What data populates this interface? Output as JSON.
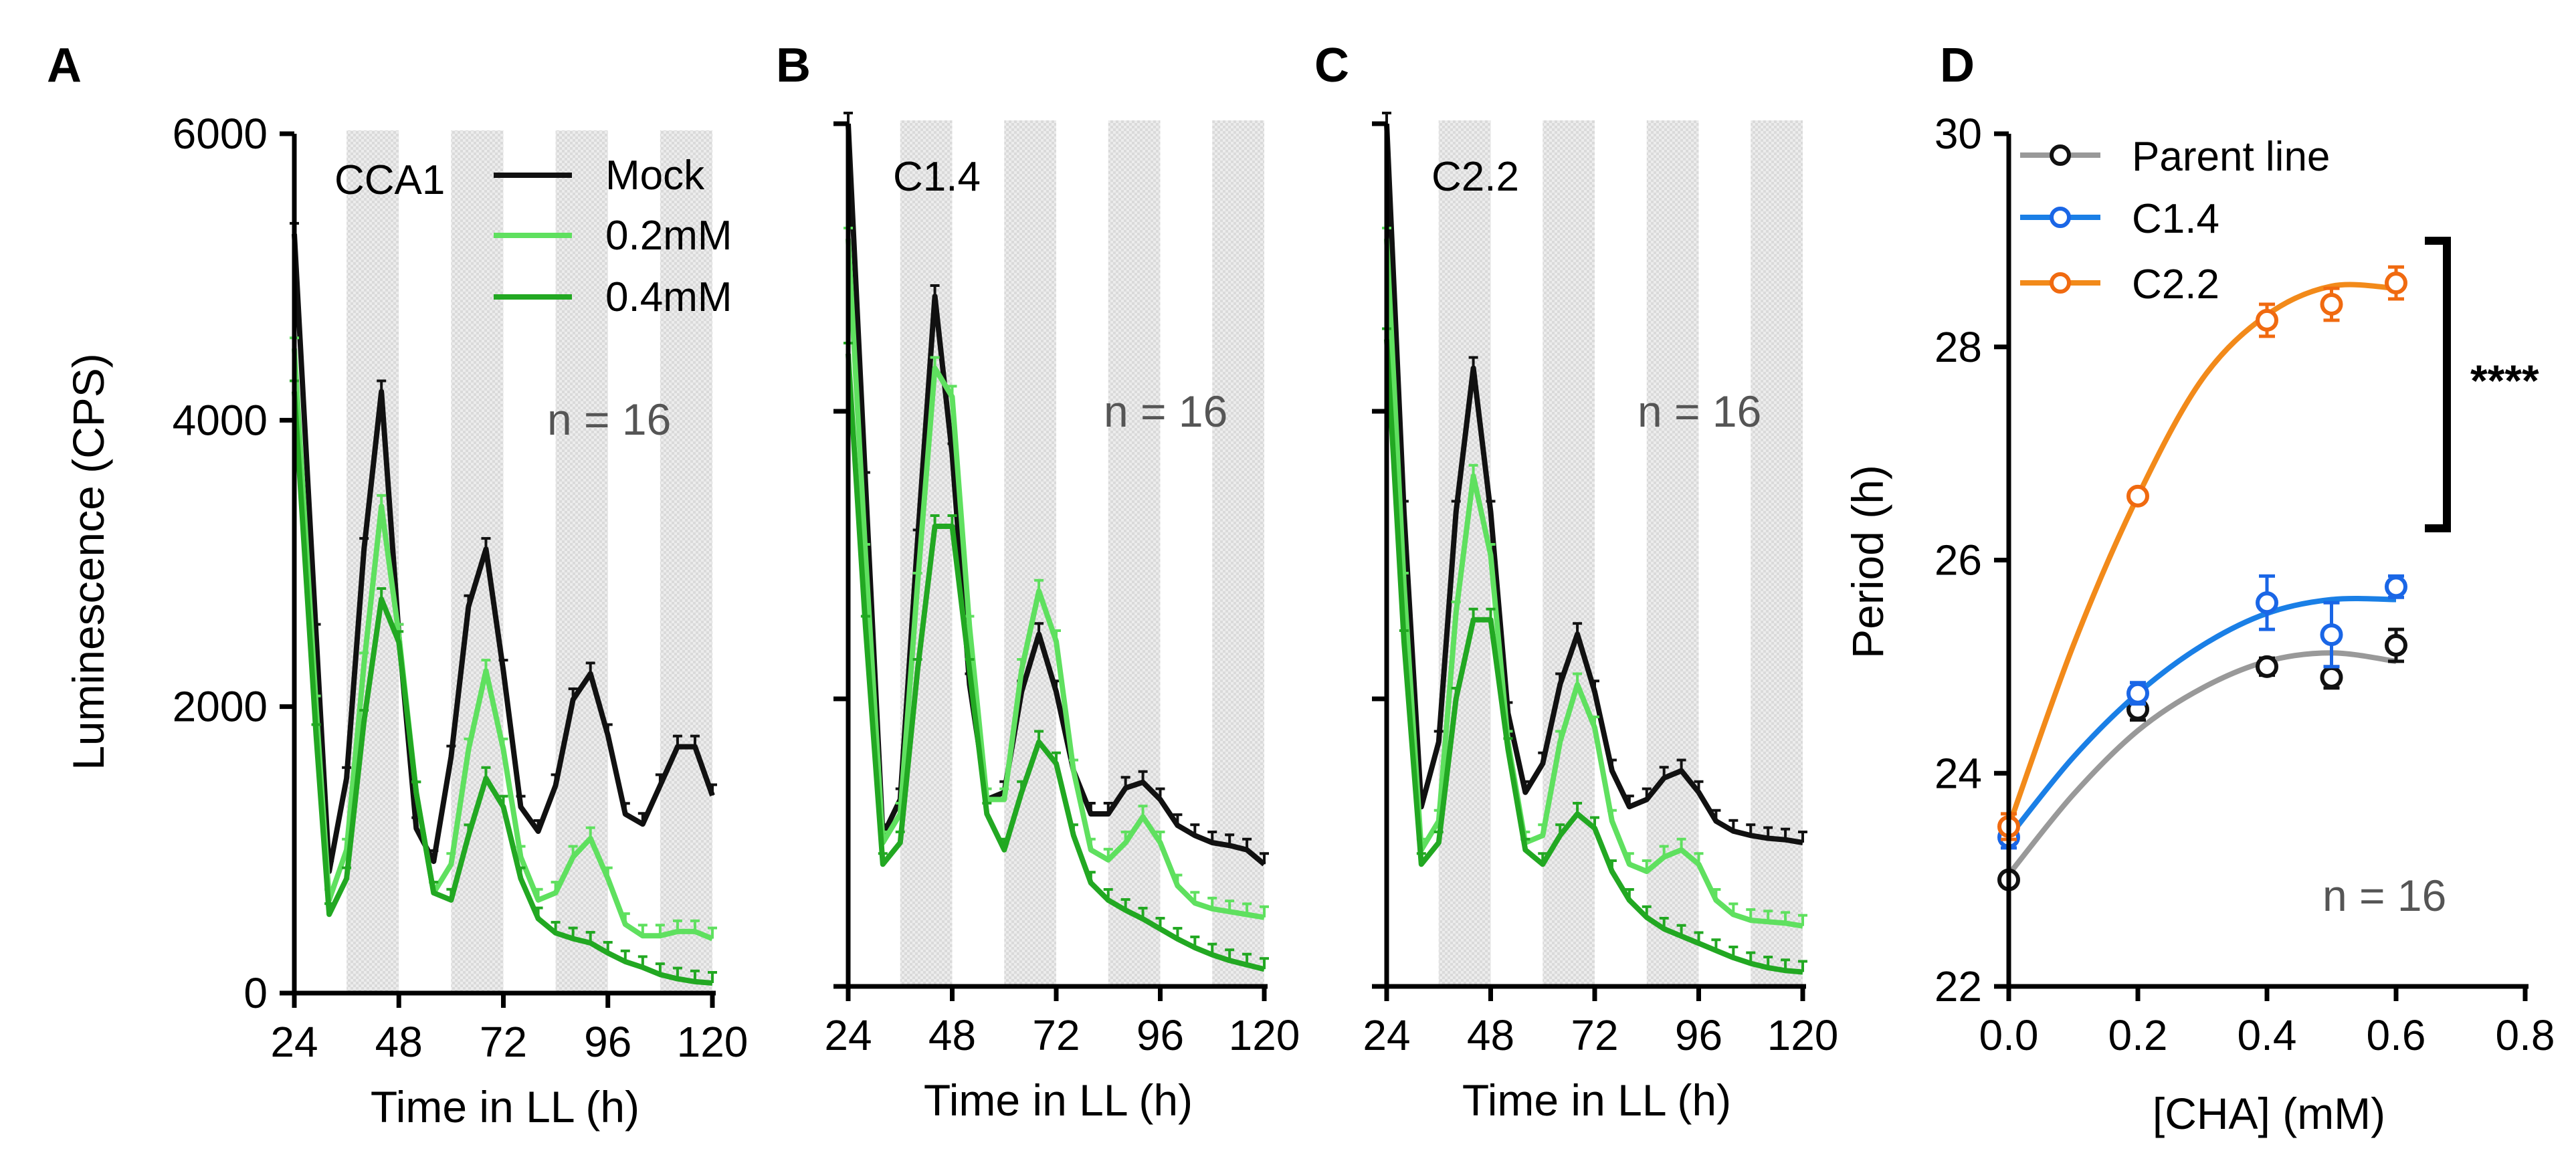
{
  "panels": [
    {
      "label": "A",
      "title": "CCA1",
      "ylabel": "Luminescence (CPS)",
      "xlabel": "Time in LL (h)",
      "n_label": "n = 16",
      "ytick_labels": [
        "0",
        "2000",
        "4000",
        "6000"
      ],
      "xtick_labels": [
        "24",
        "48",
        "72",
        "96",
        "120"
      ],
      "legend": [
        "Mock",
        "0.2mM",
        "0.4mM"
      ]
    },
    {
      "label": "B",
      "title": "C1.4",
      "xlabel": "Time in LL (h)",
      "n_label": "n = 16",
      "xtick_labels": [
        "24",
        "48",
        "72",
        "96",
        "120"
      ]
    },
    {
      "label": "C",
      "title": "C2.2",
      "xlabel": "Time in LL (h)",
      "n_label": "n = 16",
      "xtick_labels": [
        "24",
        "48",
        "72",
        "96",
        "120"
      ]
    },
    {
      "label": "D",
      "ylabel": "Period (h)",
      "xlabel": "[CHA] (mM)",
      "n_label": "n = 16",
      "sig_label": "****",
      "ytick_labels": [
        "22",
        "24",
        "26",
        "28",
        "30"
      ],
      "xtick_labels": [
        "0.0",
        "0.2",
        "0.4",
        "0.6",
        "0.8"
      ],
      "legend": [
        "Parent line",
        "C1.4",
        "C2.2"
      ]
    }
  ],
  "chart_data": [
    {
      "type": "line",
      "panel": "A",
      "title": "CCA1",
      "xlabel": "Time in LL (h)",
      "ylabel": "Luminescence (CPS)",
      "xlim": [
        24,
        120
      ],
      "ylim": [
        0,
        6000
      ],
      "subjective_night_h": [
        [
          36,
          48
        ],
        [
          60,
          72
        ],
        [
          84,
          96
        ],
        [
          108,
          120
        ]
      ],
      "series": [
        {
          "name": "Mock",
          "color": "#111111",
          "x": [
            24,
            29,
            32,
            36,
            40,
            44,
            48,
            52,
            56,
            60,
            64,
            68,
            72,
            76,
            80,
            84,
            88,
            92,
            96,
            100,
            104,
            108,
            112,
            116,
            120
          ],
          "y": [
            5300,
            2500,
            850,
            1500,
            3100,
            4200,
            2500,
            1150,
            920,
            1650,
            2700,
            3100,
            2250,
            1300,
            1130,
            1450,
            2050,
            2230,
            1800,
            1250,
            1180,
            1450,
            1720,
            1720,
            1380
          ]
        },
        {
          "name": "0.2mM",
          "color": "#5fe05f",
          "x": [
            24,
            29,
            32,
            36,
            40,
            44,
            48,
            52,
            56,
            60,
            64,
            68,
            72,
            76,
            80,
            84,
            88,
            92,
            96,
            100,
            104,
            108,
            112,
            116,
            120
          ],
          "y": [
            4500,
            2000,
            650,
            1000,
            2300,
            3400,
            2500,
            1400,
            700,
            900,
            1700,
            2250,
            1700,
            950,
            650,
            700,
            950,
            1080,
            800,
            480,
            400,
            400,
            430,
            430,
            380
          ]
        },
        {
          "name": "0.4mM",
          "color": "#22a822",
          "x": [
            24,
            29,
            32,
            36,
            40,
            44,
            48,
            52,
            56,
            60,
            64,
            68,
            72,
            76,
            80,
            84,
            88,
            92,
            96,
            100,
            104,
            108,
            112,
            116,
            120
          ],
          "y": [
            4200,
            1800,
            550,
            800,
            1900,
            2750,
            2450,
            1400,
            700,
            650,
            1100,
            1500,
            1300,
            800,
            520,
            420,
            380,
            350,
            280,
            220,
            180,
            130,
            100,
            80,
            70
          ]
        }
      ]
    },
    {
      "type": "line",
      "panel": "B",
      "title": "C1.4",
      "xlabel": "Time in LL (h)",
      "ylabel": "Luminescence (CPS)",
      "xlim": [
        24,
        120
      ],
      "ylim": [
        0,
        6000
      ],
      "subjective_night_h": [
        [
          36,
          48
        ],
        [
          60,
          72
        ],
        [
          84,
          96
        ],
        [
          108,
          120
        ]
      ],
      "series": [
        {
          "name": "Mock",
          "color": "#111111",
          "x": [
            24,
            28,
            32,
            36,
            40,
            44,
            48,
            52,
            56,
            60,
            64,
            68,
            72,
            76,
            80,
            84,
            88,
            92,
            96,
            100,
            104,
            108,
            112,
            116,
            120
          ],
          "y": [
            6000,
            3500,
            1050,
            1300,
            3100,
            4800,
            3700,
            2100,
            1300,
            1350,
            2050,
            2450,
            2050,
            1500,
            1200,
            1200,
            1380,
            1420,
            1300,
            1120,
            1050,
            1000,
            980,
            950,
            850
          ]
        },
        {
          "name": "0.2mM",
          "color": "#5fe05f",
          "x": [
            24,
            28,
            32,
            36,
            40,
            44,
            48,
            52,
            56,
            60,
            64,
            68,
            72,
            76,
            80,
            84,
            88,
            92,
            96,
            100,
            104,
            108,
            112,
            116,
            120
          ],
          "y": [
            5200,
            3000,
            1000,
            1200,
            2800,
            4300,
            4100,
            2500,
            1300,
            1300,
            2200,
            2750,
            2400,
            1500,
            950,
            880,
            1000,
            1180,
            1000,
            700,
            580,
            540,
            520,
            500,
            480
          ]
        },
        {
          "name": "0.4mM",
          "color": "#22a822",
          "x": [
            24,
            28,
            32,
            36,
            40,
            44,
            48,
            52,
            56,
            60,
            64,
            68,
            72,
            76,
            80,
            84,
            88,
            92,
            96,
            100,
            104,
            108,
            112,
            116,
            120
          ],
          "y": [
            4400,
            2500,
            850,
            1000,
            2200,
            3200,
            3200,
            2200,
            1200,
            950,
            1350,
            1700,
            1550,
            1050,
            720,
            600,
            530,
            470,
            400,
            330,
            270,
            220,
            180,
            150,
            120
          ]
        }
      ]
    },
    {
      "type": "line",
      "panel": "C",
      "title": "C2.2",
      "xlabel": "Time in LL (h)",
      "ylabel": "Luminescence (CPS)",
      "xlim": [
        24,
        120
      ],
      "ylim": [
        0,
        6000
      ],
      "subjective_night_h": [
        [
          36,
          48
        ],
        [
          60,
          72
        ],
        [
          84,
          96
        ],
        [
          108,
          120
        ]
      ],
      "series": [
        {
          "name": "Mock",
          "color": "#111111",
          "x": [
            24,
            28,
            32,
            36,
            40,
            44,
            48,
            52,
            56,
            60,
            64,
            68,
            72,
            76,
            80,
            84,
            88,
            92,
            96,
            100,
            104,
            108,
            112,
            116,
            120
          ],
          "y": [
            6000,
            3300,
            1250,
            1700,
            3300,
            4300,
            3300,
            1900,
            1350,
            1550,
            2100,
            2450,
            2050,
            1500,
            1250,
            1300,
            1450,
            1500,
            1350,
            1150,
            1080,
            1050,
            1030,
            1020,
            1000
          ]
        },
        {
          "name": "0.2mM",
          "color": "#5fe05f",
          "x": [
            24,
            28,
            32,
            36,
            40,
            44,
            48,
            52,
            56,
            60,
            64,
            68,
            72,
            76,
            80,
            84,
            88,
            92,
            96,
            100,
            104,
            108,
            112,
            116,
            120
          ],
          "y": [
            5200,
            2800,
            950,
            1150,
            2600,
            3550,
            3000,
            1700,
            1000,
            1050,
            1700,
            2100,
            1800,
            1150,
            850,
            800,
            900,
            950,
            850,
            600,
            500,
            460,
            450,
            440,
            420
          ]
        },
        {
          "name": "0.4mM",
          "color": "#22a822",
          "x": [
            24,
            28,
            32,
            36,
            40,
            44,
            48,
            52,
            56,
            60,
            64,
            68,
            72,
            76,
            80,
            84,
            88,
            92,
            96,
            100,
            104,
            108,
            112,
            116,
            120
          ],
          "y": [
            4500,
            2400,
            850,
            1000,
            2000,
            2550,
            2550,
            1650,
            950,
            850,
            1050,
            1200,
            1100,
            800,
            600,
            480,
            400,
            350,
            300,
            250,
            200,
            160,
            130,
            110,
            100
          ]
        }
      ]
    },
    {
      "type": "scatter",
      "panel": "D",
      "xlabel": "[CHA] (mM)",
      "ylabel": "Period (h)",
      "xlim": [
        0,
        0.8
      ],
      "ylim": [
        22,
        30
      ],
      "significance": "****",
      "series": [
        {
          "name": "Parent line",
          "color": "#111111",
          "fit_color": "#999999",
          "x": [
            0.0,
            0.2,
            0.4,
            0.5,
            0.6
          ],
          "y": [
            23.0,
            24.6,
            25.0,
            24.9,
            25.2
          ],
          "err": [
            0.05,
            0.1,
            0.08,
            0.1,
            0.15
          ],
          "fit_y": [
            23.05,
            23.8,
            24.4,
            24.8,
            25.05,
            25.13,
            25.05
          ]
        },
        {
          "name": "C1.4",
          "color": "#1a66e6",
          "fit_color": "#1a7fe6",
          "x": [
            0.0,
            0.2,
            0.4,
            0.5,
            0.6
          ],
          "y": [
            23.4,
            24.75,
            25.6,
            25.3,
            25.75
          ],
          "err": [
            0.1,
            0.1,
            0.25,
            0.3,
            0.1
          ],
          "fit_y": [
            23.4,
            24.15,
            24.75,
            25.2,
            25.5,
            25.63,
            25.63
          ]
        },
        {
          "name": "C2.2",
          "color": "#f06a10",
          "fit_color": "#f28a1a",
          "x": [
            0.0,
            0.2,
            0.4,
            0.5,
            0.6
          ],
          "y": [
            23.5,
            26.6,
            28.25,
            28.4,
            28.6
          ],
          "err": [
            0.12,
            0.05,
            0.15,
            0.15,
            0.15
          ],
          "fit_y": [
            23.5,
            25.2,
            26.6,
            27.7,
            28.3,
            28.57,
            28.55
          ]
        }
      ],
      "fit_x": [
        0.0,
        0.1,
        0.2,
        0.3,
        0.4,
        0.5,
        0.6
      ]
    }
  ]
}
